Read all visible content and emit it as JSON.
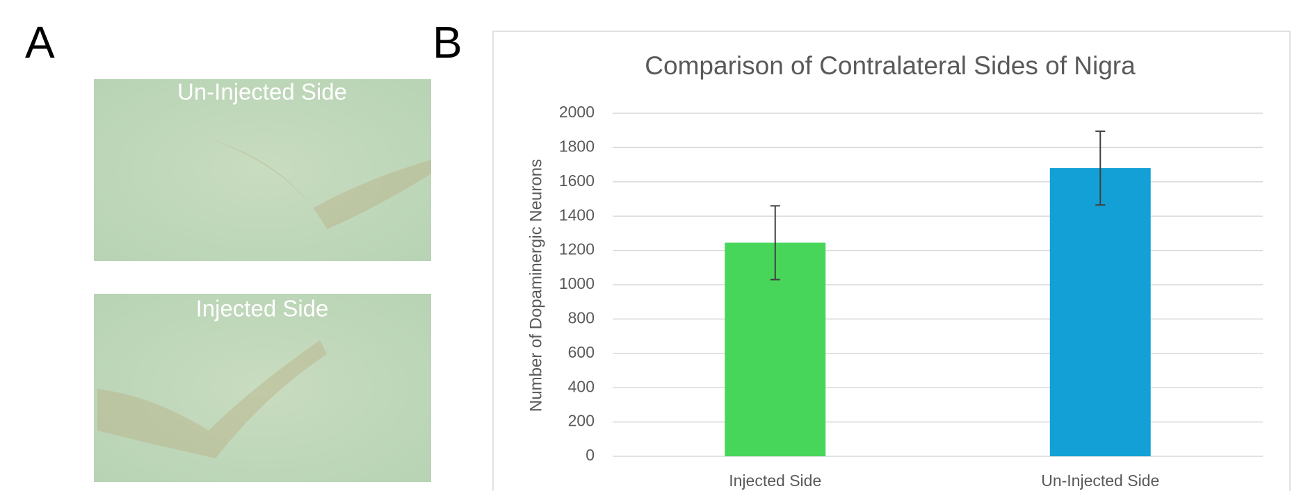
{
  "panels": [
    "A",
    "B"
  ],
  "images": [
    {
      "label": "Un-Injected Side"
    },
    {
      "label": "Injected Side"
    }
  ],
  "chart_data": {
    "type": "bar",
    "title": "Comparison of Contralateral Sides of Nigra",
    "y_label": "Number of Dopaminergic Neurons",
    "categories": [
      "Injected Side",
      "Un-Injected Side"
    ],
    "values": [
      1245,
      1680
    ],
    "errors": [
      215,
      215
    ],
    "colors": [
      "#48d65a",
      "#12a0d7"
    ],
    "ylim": [
      0,
      2000
    ],
    "yticks": [
      0,
      200,
      400,
      600,
      800,
      1000,
      1200,
      1400,
      1600,
      1800,
      2000
    ],
    "grid": true
  }
}
